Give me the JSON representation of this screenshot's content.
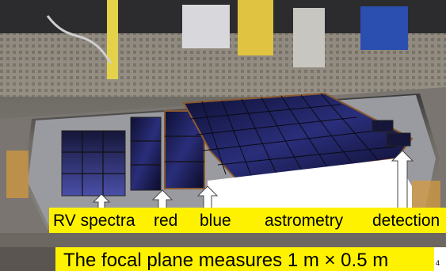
{
  "photo": {
    "subject": "focal plane photograph"
  },
  "labels": {
    "rv_spectra": "RV spectra",
    "red": "red",
    "blue": "blue",
    "astrometry": "astrometry",
    "detection": "detection"
  },
  "caption": "The focal plane measures 1 m × 0.5 m",
  "page_number": "4",
  "colors": {
    "highlight_yellow": "#fff200",
    "detector_blue": "#1b1f5c",
    "plate_gray": "#9a9ba0"
  }
}
